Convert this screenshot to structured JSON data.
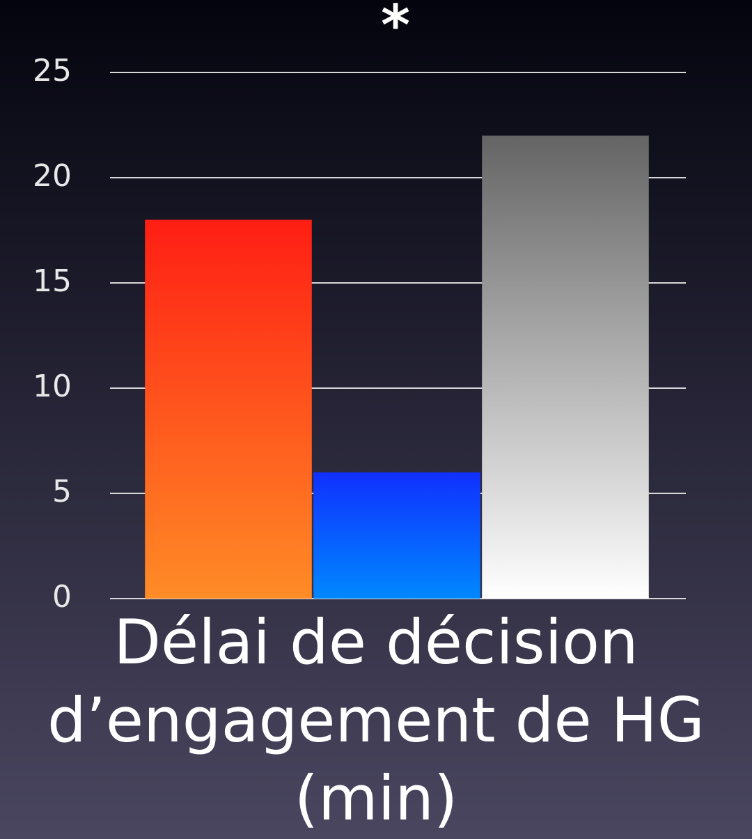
{
  "chart_data": {
    "type": "bar",
    "title": "Délai de décision d’engagement de HG (min)",
    "annotation": "*",
    "categories": [
      null,
      null,
      null
    ],
    "values": [
      18,
      6,
      22
    ],
    "colors": [
      [
        "#ff1e14",
        "#ff8c26"
      ],
      [
        "#1030ff",
        "#0088ff"
      ],
      [
        "#646464",
        "#ffffff"
      ]
    ],
    "ylim": [
      0,
      25
    ],
    "yticks": [
      0,
      5,
      10,
      15,
      20,
      25
    ],
    "grid": true
  }
}
